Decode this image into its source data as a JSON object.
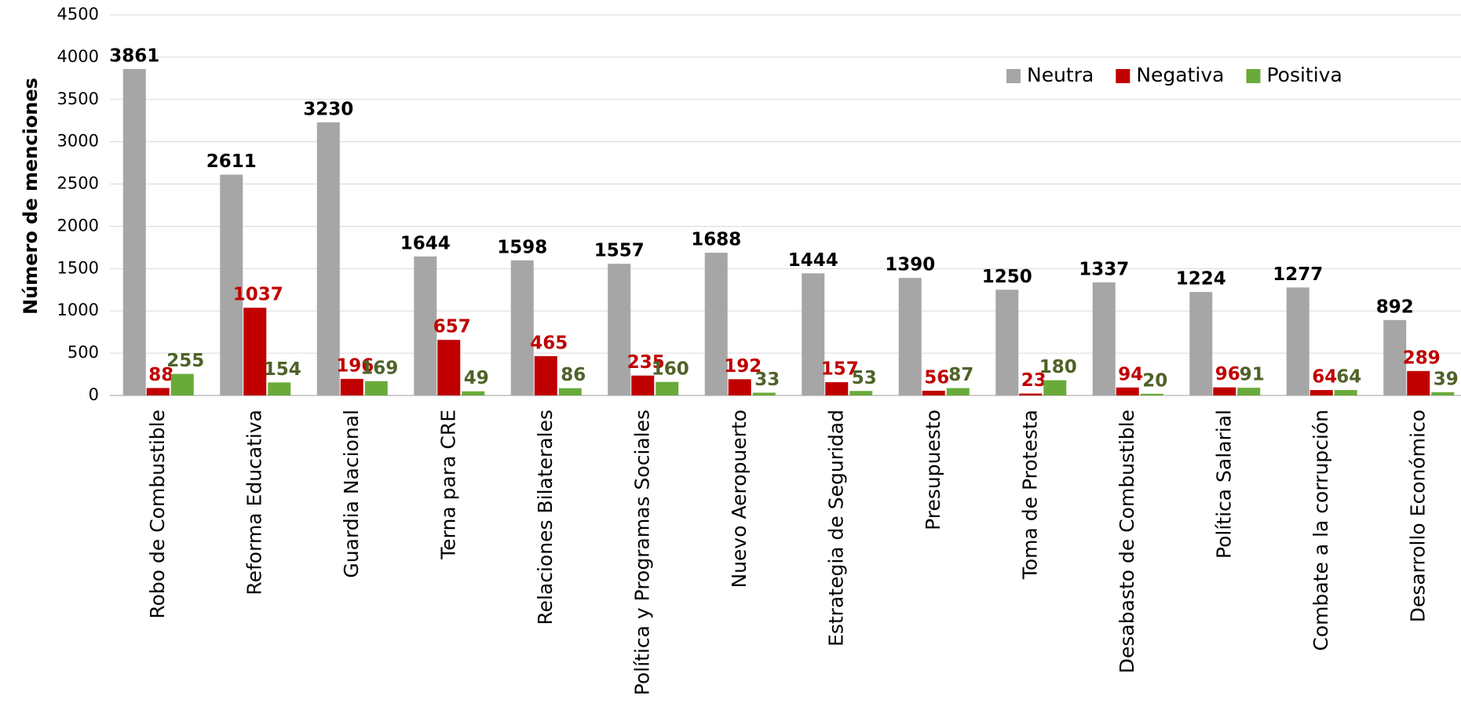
{
  "chart_data": {
    "type": "bar",
    "y_label": "Número de menciones",
    "categories": [
      "Robo de Combustible",
      "Reforma Educativa",
      "Guardia Nacional",
      "Terna para CRE",
      "Relaciones Bilaterales",
      "Política y Programas Sociales",
      "Nuevo Aeropuerto",
      "Estrategia de Seguridad",
      "Presupuesto",
      "Toma de Protesta",
      "Desabasto de Combustible",
      "Política Salarial",
      "Combate a la corrupción",
      "Desarrollo Económico"
    ],
    "series": [
      {
        "name": "Neutra",
        "color": "#a6a6a6",
        "label_color": "#000000",
        "values": [
          3861,
          2611,
          3230,
          1644,
          1598,
          1557,
          1688,
          1444,
          1390,
          1250,
          1337,
          1224,
          1277,
          892
        ]
      },
      {
        "name": "Negativa",
        "color": "#c00000",
        "label_color": "#c00000",
        "values": [
          88,
          1037,
          196,
          657,
          465,
          235,
          192,
          157,
          56,
          23,
          94,
          96,
          64,
          289
        ]
      },
      {
        "name": "Positiva",
        "color": "#6aaa3a",
        "label_color": "#4f6228",
        "values": [
          255,
          154,
          169,
          49,
          86,
          160,
          33,
          53,
          87,
          180,
          20,
          91,
          64,
          39
        ]
      }
    ],
    "ylim": [
      0,
      4500
    ],
    "yticks": [
      0,
      500,
      1000,
      1500,
      2000,
      2500,
      3000,
      3500,
      4000,
      4500
    ],
    "grid": true,
    "legend_position": "upper right"
  }
}
